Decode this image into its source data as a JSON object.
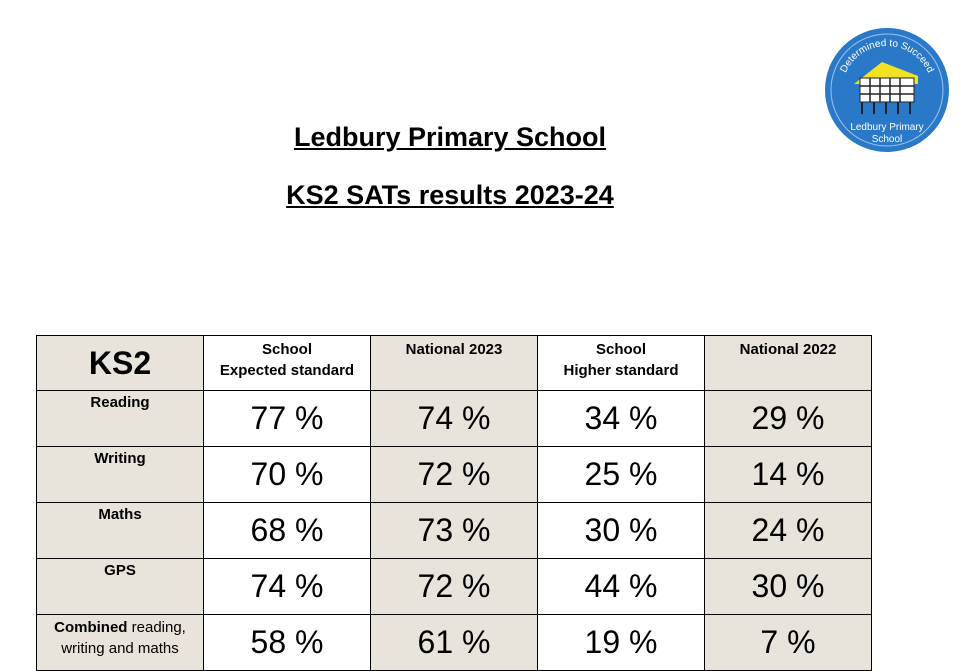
{
  "header": {
    "title": "Ledbury Primary School",
    "subtitle": "KS2 SATs results 2023-24"
  },
  "logo": {
    "motto": "Determined to Succeed",
    "name_lines": [
      "Ledbury Primary",
      "School"
    ]
  },
  "table": {
    "corner": "KS2",
    "columns": [
      [
        "School",
        "Expected standard"
      ],
      [
        "National 2023"
      ],
      [
        "School",
        "Higher standard"
      ],
      [
        "National 2022"
      ]
    ],
    "rows": [
      {
        "label": "Reading",
        "cells": [
          "77 %",
          "74 %",
          "34 %",
          "29 %"
        ]
      },
      {
        "label": "Writing",
        "cells": [
          "70 %",
          "72 %",
          "25 %",
          "14 %"
        ]
      },
      {
        "label": "Maths",
        "cells": [
          "68 %",
          "73 %",
          "30 %",
          "24 %"
        ]
      },
      {
        "label": "GPS",
        "cells": [
          "74 %",
          "72 %",
          "44 %",
          "30 %"
        ]
      },
      {
        "label_bold": "Combined",
        "label": "reading, writing and maths",
        "cells": [
          "58 %",
          "61 %",
          "19 %",
          "7 %"
        ]
      }
    ]
  }
}
